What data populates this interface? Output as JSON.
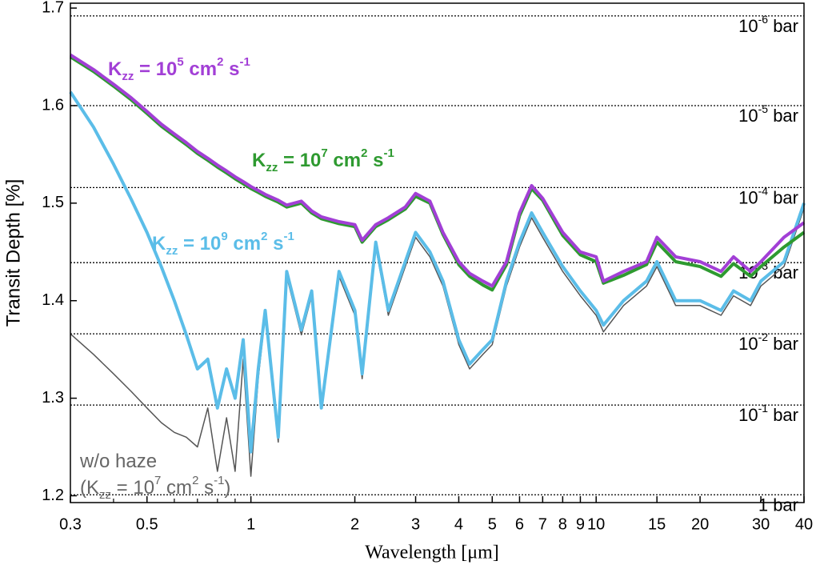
{
  "chart_data": {
    "type": "line",
    "xlabel": "Wavelength [μm]",
    "ylabel": "Transit Depth [%]",
    "xscale": "log",
    "xlim": [
      0.3,
      40
    ],
    "ylim": [
      1.193,
      1.705
    ],
    "xticks": [
      0.3,
      0.5,
      1,
      2,
      3,
      4,
      5,
      6,
      7,
      8,
      9,
      10,
      15,
      20,
      30,
      40
    ],
    "xminor": [
      0.4,
      0.6,
      0.7,
      0.8,
      0.9
    ],
    "yticks": [
      1.2,
      1.3,
      1.4,
      1.5,
      1.6,
      1.7
    ],
    "x": [
      0.3,
      0.35,
      0.4,
      0.45,
      0.5,
      0.55,
      0.6,
      0.65,
      0.7,
      0.75,
      0.8,
      0.85,
      0.9,
      0.95,
      1.0,
      1.05,
      1.1,
      1.2,
      1.27,
      1.4,
      1.5,
      1.6,
      1.8,
      2.0,
      2.1,
      2.3,
      2.5,
      2.8,
      3.0,
      3.3,
      3.6,
      4.0,
      4.3,
      4.7,
      5.0,
      5.5,
      6.0,
      6.5,
      7.0,
      8.0,
      9.0,
      10.0,
      10.5,
      12,
      14,
      15,
      17,
      20,
      23,
      25,
      28,
      30,
      35,
      40
    ],
    "series": [
      {
        "name": "w/o haze",
        "color": "#555555",
        "width": 1.5,
        "values": [
          1.366,
          1.345,
          1.325,
          1.307,
          1.29,
          1.275,
          1.265,
          1.26,
          1.25,
          1.29,
          1.225,
          1.28,
          1.225,
          1.34,
          1.22,
          1.32,
          1.385,
          1.255,
          1.425,
          1.365,
          1.405,
          1.29,
          1.425,
          1.385,
          1.32,
          1.455,
          1.385,
          1.435,
          1.465,
          1.445,
          1.415,
          1.355,
          1.33,
          1.345,
          1.355,
          1.415,
          1.455,
          1.485,
          1.465,
          1.43,
          1.405,
          1.385,
          1.368,
          1.395,
          1.415,
          1.435,
          1.395,
          1.395,
          1.385,
          1.405,
          1.395,
          1.415,
          1.435,
          1.495
        ]
      },
      {
        "name": "Kzz9",
        "color": "#5bbde8",
        "width": 4,
        "values": [
          1.614,
          1.578,
          1.54,
          1.504,
          1.47,
          1.435,
          1.4,
          1.365,
          1.33,
          1.34,
          1.29,
          1.33,
          1.3,
          1.36,
          1.245,
          1.33,
          1.39,
          1.26,
          1.43,
          1.37,
          1.41,
          1.29,
          1.43,
          1.39,
          1.325,
          1.46,
          1.39,
          1.44,
          1.47,
          1.45,
          1.42,
          1.36,
          1.335,
          1.35,
          1.36,
          1.42,
          1.46,
          1.49,
          1.47,
          1.435,
          1.41,
          1.39,
          1.375,
          1.4,
          1.42,
          1.44,
          1.4,
          1.4,
          1.39,
          1.41,
          1.4,
          1.42,
          1.44,
          1.5
        ]
      },
      {
        "name": "Kzz7",
        "color": "#2e9a30",
        "width": 4,
        "values": [
          1.65,
          1.635,
          1.62,
          1.606,
          1.592,
          1.579,
          1.569,
          1.56,
          1.551,
          1.544,
          1.537,
          1.531,
          1.525,
          1.52,
          1.515,
          1.511,
          1.507,
          1.501,
          1.496,
          1.5,
          1.49,
          1.484,
          1.479,
          1.476,
          1.46,
          1.476,
          1.483,
          1.494,
          1.507,
          1.5,
          1.468,
          1.437,
          1.425,
          1.416,
          1.411,
          1.437,
          1.487,
          1.515,
          1.503,
          1.467,
          1.447,
          1.44,
          1.418,
          1.426,
          1.437,
          1.46,
          1.44,
          1.435,
          1.425,
          1.438,
          1.425,
          1.435,
          1.455,
          1.47
        ]
      },
      {
        "name": "Kzz5",
        "color": "#a23fd6",
        "width": 4,
        "values": [
          1.652,
          1.637,
          1.622,
          1.608,
          1.594,
          1.581,
          1.571,
          1.562,
          1.553,
          1.546,
          1.539,
          1.533,
          1.527,
          1.522,
          1.517,
          1.513,
          1.509,
          1.503,
          1.498,
          1.502,
          1.492,
          1.486,
          1.481,
          1.478,
          1.462,
          1.478,
          1.485,
          1.496,
          1.51,
          1.502,
          1.47,
          1.44,
          1.428,
          1.42,
          1.415,
          1.44,
          1.49,
          1.518,
          1.505,
          1.47,
          1.45,
          1.445,
          1.42,
          1.43,
          1.44,
          1.465,
          1.445,
          1.44,
          1.43,
          1.445,
          1.43,
          1.44,
          1.465,
          1.48
        ]
      }
    ],
    "pressure_levels": [
      {
        "value": 1.692,
        "base": "10",
        "exp": "-6",
        "unit": " bar"
      },
      {
        "value": 1.6,
        "base": "10",
        "exp": "-5",
        "unit": " bar"
      },
      {
        "value": 1.516,
        "base": "10",
        "exp": "-4",
        "unit": " bar"
      },
      {
        "value": 1.439,
        "base": "10",
        "exp": "-3",
        "unit": " bar"
      },
      {
        "value": 1.366,
        "base": "10",
        "exp": "-2",
        "unit": " bar"
      },
      {
        "value": 1.293,
        "base": "10",
        "exp": "-1",
        "unit": " bar"
      },
      {
        "value": 1.201,
        "base": "1 bar"
      }
    ],
    "annotations": [
      {
        "color": "#a23fd6",
        "bold": true,
        "parts": [
          {
            "t": "K"
          },
          {
            "t": "zz",
            "sub": true
          },
          {
            "t": " = 10"
          },
          {
            "t": "5",
            "sup": true
          },
          {
            "t": " cm"
          },
          {
            "t": "2",
            "sup": true
          },
          {
            "t": " s"
          },
          {
            "t": "-1",
            "sup": true
          }
        ]
      },
      {
        "color": "#2e9a30",
        "bold": true,
        "parts": [
          {
            "t": "K"
          },
          {
            "t": "zz",
            "sub": true
          },
          {
            "t": " = 10"
          },
          {
            "t": "7",
            "sup": true
          },
          {
            "t": " cm"
          },
          {
            "t": "2",
            "sup": true
          },
          {
            "t": " s"
          },
          {
            "t": "-1",
            "sup": true
          }
        ]
      },
      {
        "color": "#5bbde8",
        "bold": true,
        "parts": [
          {
            "t": "K"
          },
          {
            "t": "zz",
            "sub": true
          },
          {
            "t": " = 10"
          },
          {
            "t": "9",
            "sup": true
          },
          {
            "t": " cm"
          },
          {
            "t": "2",
            "sup": true
          },
          {
            "t": " s"
          },
          {
            "t": "-1",
            "sup": true
          }
        ]
      },
      {
        "color": "#666666",
        "bold": false,
        "parts": [
          {
            "t": "w/o haze"
          }
        ]
      },
      {
        "color": "#666666",
        "bold": false,
        "parts": [
          {
            "t": "(K"
          },
          {
            "t": "zz",
            "sub": true
          },
          {
            "t": " = 10"
          },
          {
            "t": "7",
            "sup": true
          },
          {
            "t": " cm"
          },
          {
            "t": "2",
            "sup": true
          },
          {
            "t": " s"
          },
          {
            "t": "-1",
            "sup": true
          },
          {
            "t": ")"
          }
        ]
      }
    ]
  }
}
